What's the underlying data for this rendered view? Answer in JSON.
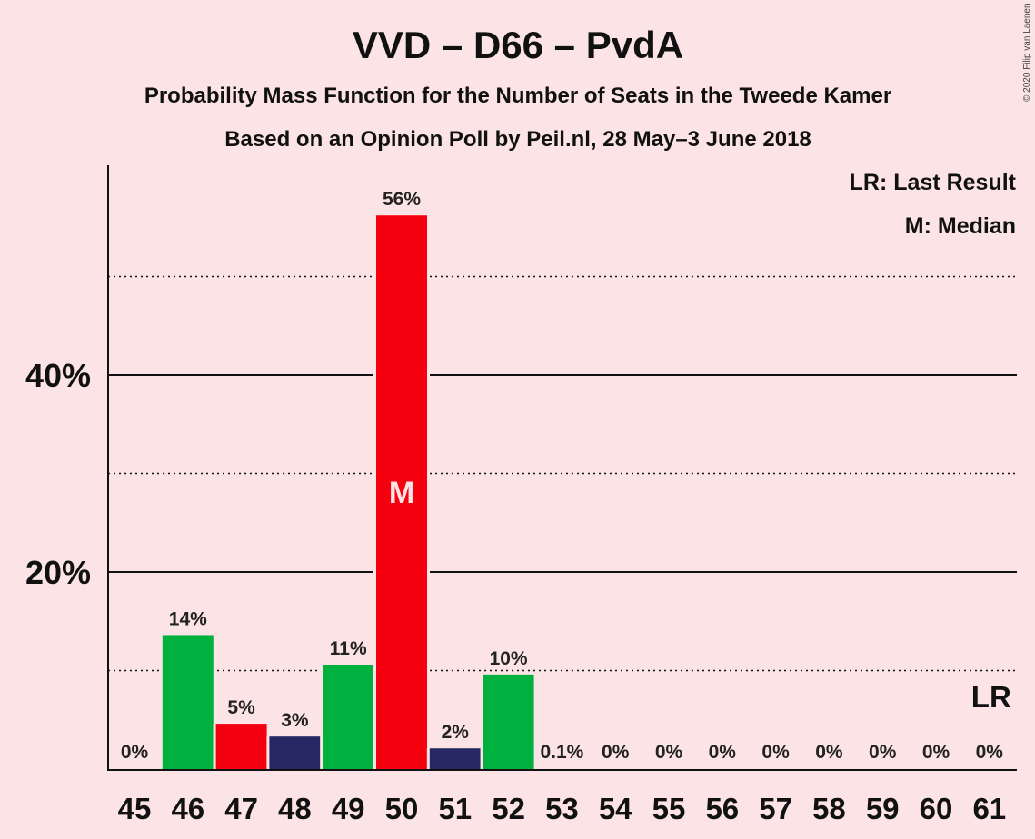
{
  "copyright": "© 2020 Filip van Laenen",
  "chart_data": {
    "type": "bar",
    "title": "VVD – D66 – PvdA",
    "subtitle1": "Probability Mass Function for the Number of Seats in the Tweede Kamer",
    "subtitle2": "Based on an Opinion Poll by Peil.nl, 28 May–3 June 2018",
    "legend": [
      "LR: Last Result",
      "M: Median"
    ],
    "ylim": [
      0,
      61
    ],
    "yticks": [
      {
        "value": 20,
        "label": "20%"
      },
      {
        "value": 40,
        "label": "40%"
      }
    ],
    "minor_gridlines": [
      10,
      30,
      50
    ],
    "categories": [
      "45",
      "46",
      "47",
      "48",
      "49",
      "50",
      "51",
      "52",
      "53",
      "54",
      "55",
      "56",
      "57",
      "58",
      "59",
      "60",
      "61"
    ],
    "values": [
      0,
      13.6,
      4.6,
      3.3,
      10.6,
      56.2,
      2.1,
      9.6,
      0.1,
      0,
      0,
      0,
      0,
      0,
      0,
      0,
      0
    ],
    "labels": [
      "0%",
      "14%",
      "5%",
      "3%",
      "11%",
      "56%",
      "2%",
      "10%",
      "0.1%",
      "0%",
      "0%",
      "0%",
      "0%",
      "0%",
      "0%",
      "0%",
      "0%"
    ],
    "colors": [
      "#00b140",
      "#00b140",
      "#f5000f",
      "#262863",
      "#00b140",
      "#f5000f",
      "#262863",
      "#00b140",
      "#00b140",
      "#00b140",
      "#00b140",
      "#00b140",
      "#00b140",
      "#00b140",
      "#00b140",
      "#00b140",
      "#00b140"
    ],
    "median_category": "50",
    "median_marker": "M",
    "last_result_category": "61",
    "last_result_marker": "LR"
  }
}
